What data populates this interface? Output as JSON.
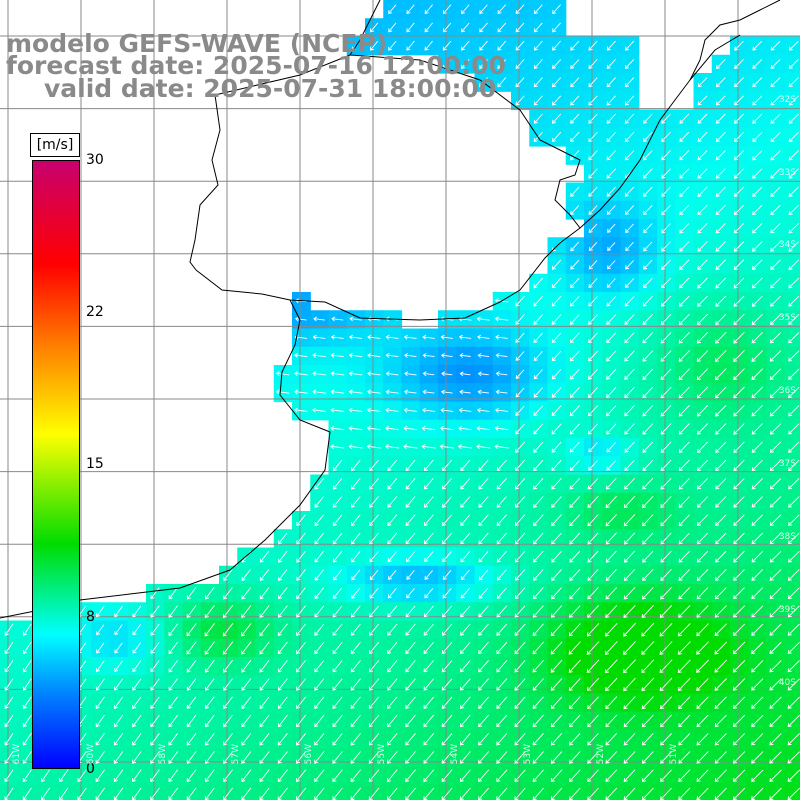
{
  "title": {
    "model": "modelo GEFS-WAVE (NCEP)",
    "forecast": "forecast date: 2025-07-16 12:00:00",
    "valid": "valid date: 2025-07-31 18:00:00"
  },
  "colorbar": {
    "unit": "[m/s]",
    "ticks": [
      "30",
      "22",
      "15",
      "8",
      "0"
    ],
    "colors": [
      "#0000ff",
      "#0080ff",
      "#00ffff",
      "#00dc00",
      "#ffff00",
      "#ff7a00",
      "#ff0000",
      "#c8006e"
    ]
  },
  "lat_labels": [
    "32S",
    "33S",
    "34S",
    "35S",
    "36S",
    "37S",
    "38S",
    "39S",
    "40S"
  ],
  "lon_labels": [
    "61W",
    "60W",
    "58W",
    "57W",
    "56W",
    "55W",
    "54W",
    "53W",
    "52W",
    "51W"
  ],
  "colors": {
    "land": "#ffffff",
    "coastline": "#000000",
    "grid": "#888888",
    "wind_arrows": "#ffffff"
  }
}
